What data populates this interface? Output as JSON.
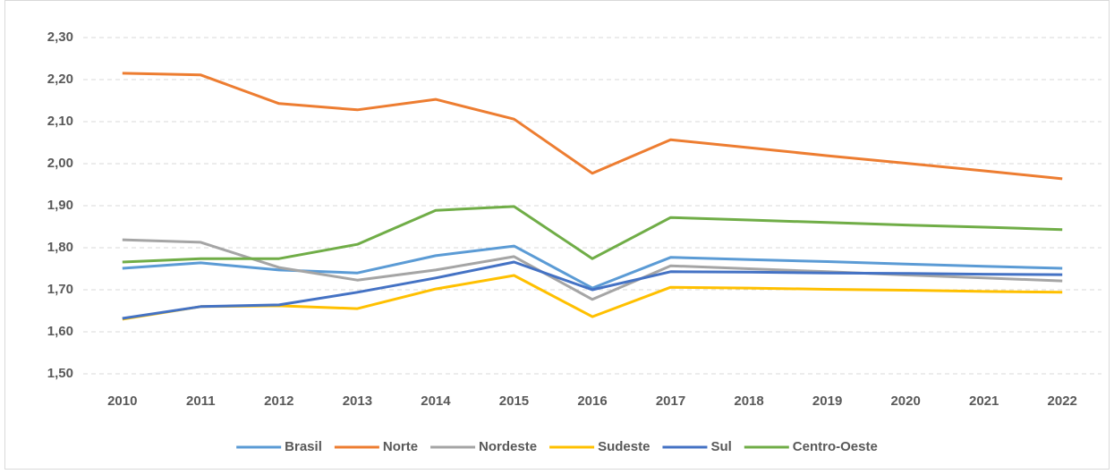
{
  "chart_data": {
    "type": "line",
    "categories": [
      "2010",
      "2011",
      "2012",
      "2013",
      "2014",
      "2015",
      "2016",
      "2017",
      "2018",
      "2019",
      "2020",
      "2021",
      "2022"
    ],
    "series": [
      {
        "name": "Brasil",
        "color": "#5b9bd5",
        "values": [
          1.751,
          1.764,
          1.747,
          1.74,
          1.781,
          1.804,
          1.704,
          1.777,
          1.772,
          1.767,
          1.761,
          1.756,
          1.751
        ]
      },
      {
        "name": "Norte",
        "color": "#ed7d31",
        "values": [
          2.215,
          2.211,
          2.143,
          2.128,
          2.153,
          2.106,
          1.977,
          2.057,
          2.038,
          2.019,
          2.001,
          1.983,
          1.964
        ]
      },
      {
        "name": "Nordeste",
        "color": "#a5a5a5",
        "values": [
          1.819,
          1.813,
          1.753,
          1.723,
          1.747,
          1.779,
          1.677,
          1.757,
          1.75,
          1.743,
          1.735,
          1.728,
          1.721
        ]
      },
      {
        "name": "Sudeste",
        "color": "#ffc000",
        "values": [
          1.63,
          1.66,
          1.662,
          1.655,
          1.702,
          1.734,
          1.636,
          1.706,
          1.704,
          1.701,
          1.699,
          1.696,
          1.694
        ]
      },
      {
        "name": "Sul",
        "color": "#4472c4",
        "values": [
          1.632,
          1.66,
          1.664,
          1.694,
          1.728,
          1.766,
          1.7,
          1.743,
          1.742,
          1.74,
          1.739,
          1.737,
          1.736
        ]
      },
      {
        "name": "Centro-Oeste",
        "color": "#70ad47",
        "values": [
          1.766,
          1.774,
          1.774,
          1.808,
          1.889,
          1.898,
          1.774,
          1.872,
          1.866,
          1.86,
          1.854,
          1.849,
          1.843
        ]
      }
    ],
    "ylim": [
      1.5,
      2.3
    ],
    "yticks": [
      {
        "value": 1.5,
        "label": "1,50"
      },
      {
        "value": 1.6,
        "label": "1,60"
      },
      {
        "value": 1.7,
        "label": "1,70"
      },
      {
        "value": 1.8,
        "label": "1,80"
      },
      {
        "value": 1.9,
        "label": "1,90"
      },
      {
        "value": 2.0,
        "label": "2,00"
      },
      {
        "value": 2.1,
        "label": "2,10"
      },
      {
        "value": 2.2,
        "label": "2,20"
      },
      {
        "value": 2.3,
        "label": "2,30"
      }
    ],
    "grid": true,
    "legend": "bottom"
  }
}
